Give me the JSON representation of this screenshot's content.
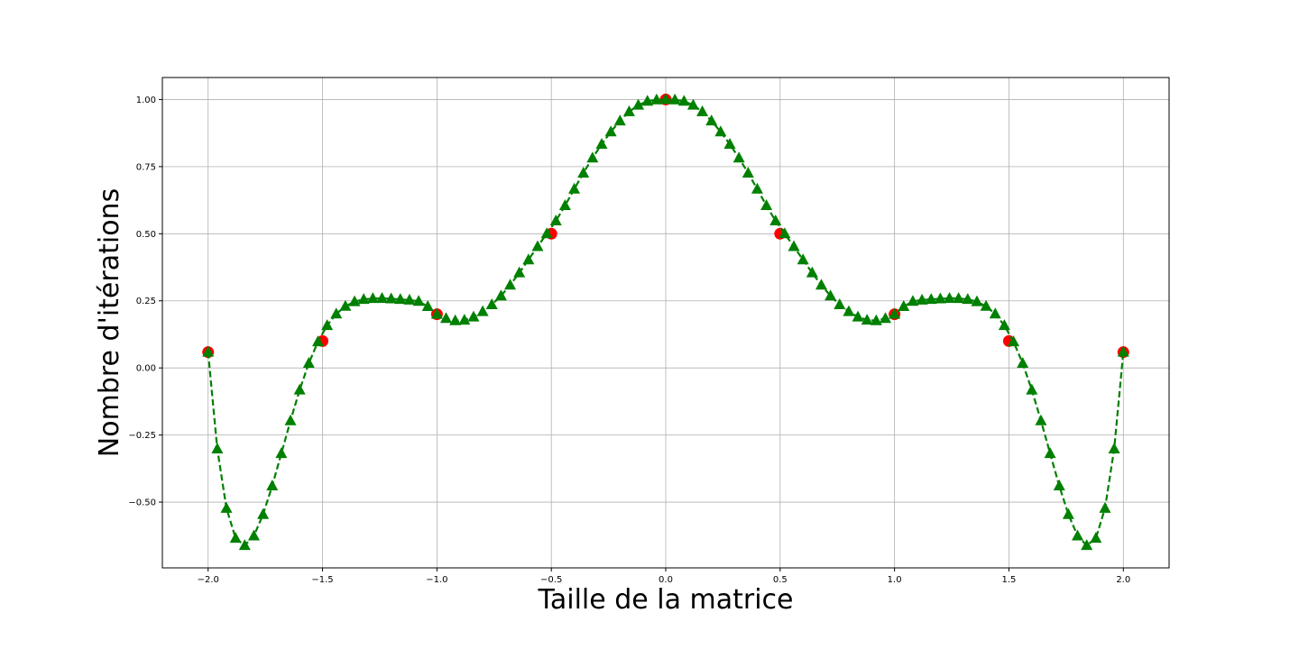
{
  "chart_data": {
    "type": "line",
    "title": "",
    "xlabel": "Taille de la matrice",
    "ylabel": "Nombre d'itérations",
    "xlim": [
      -2.2,
      2.2
    ],
    "ylim": [
      -0.745,
      1.082
    ],
    "xticks": [
      -2.0,
      -1.5,
      -1.0,
      -0.5,
      0.0,
      0.5,
      1.0,
      1.5,
      2.0
    ],
    "xtick_labels": [
      "−2.0",
      "−1.5",
      "−1.0",
      "−0.5",
      "0.0",
      "0.5",
      "1.0",
      "1.5",
      "2.0"
    ],
    "yticks": [
      -0.5,
      -0.25,
      0.0,
      0.25,
      0.5,
      0.75,
      1.0
    ],
    "ytick_labels": [
      "−0.50",
      "−0.25",
      "0.00",
      "0.25",
      "0.50",
      "0.75",
      "1.00"
    ],
    "grid": true,
    "series": [
      {
        "style": "dashed line with triangle markers",
        "color": "#008000",
        "x": [
          -2.0,
          -1.96,
          -1.92,
          -1.88,
          -1.84,
          -1.8,
          -1.76,
          -1.72,
          -1.68,
          -1.64,
          -1.6,
          -1.56,
          -1.52,
          -1.48,
          -1.44,
          -1.4,
          -1.36,
          -1.32,
          -1.28,
          -1.24,
          -1.2,
          -1.16,
          -1.12,
          -1.08,
          -1.04,
          -1.0,
          -0.96,
          -0.92,
          -0.88,
          -0.84,
          -0.8,
          -0.76,
          -0.72,
          -0.68,
          -0.64,
          -0.6,
          -0.56,
          -0.52,
          -0.48,
          -0.44,
          -0.4,
          -0.36,
          -0.32,
          -0.28,
          -0.24,
          -0.2,
          -0.16,
          -0.12,
          -0.08,
          -0.04,
          0.0,
          0.04,
          0.08,
          0.12,
          0.16,
          0.2,
          0.24,
          0.28,
          0.32,
          0.36,
          0.4,
          0.44,
          0.48,
          0.52,
          0.56,
          0.6,
          0.64,
          0.68,
          0.72,
          0.76,
          0.8,
          0.84,
          0.88,
          0.92,
          0.96,
          1.0,
          1.04,
          1.08,
          1.12,
          1.16,
          1.2,
          1.24,
          1.28,
          1.32,
          1.36,
          1.4,
          1.44,
          1.48,
          1.52,
          1.56,
          1.6,
          1.64,
          1.68,
          1.72,
          1.76,
          1.8,
          1.84,
          1.88,
          1.92,
          1.96,
          2.0
        ],
        "y": [
          0.0588,
          -0.3018,
          -0.5228,
          -0.6344,
          -0.6615,
          -0.6257,
          -0.5462,
          -0.4394,
          -0.3189,
          -0.1966,
          -0.0821,
          0.0174,
          0.0974,
          0.1581,
          0.2012,
          0.2297,
          0.2468,
          0.2555,
          0.2589,
          0.2591,
          0.2577,
          0.2555,
          0.2529,
          0.2482,
          0.2289,
          0.2,
          0.1844,
          0.1762,
          0.1783,
          0.1901,
          0.2101,
          0.2358,
          0.2685,
          0.3087,
          0.3543,
          0.4029,
          0.4522,
          0.5,
          0.5478,
          0.6049,
          0.6662,
          0.7262,
          0.7822,
          0.8335,
          0.8797,
          0.9204,
          0.9546,
          0.9791,
          0.9937,
          0.9989,
          1.0,
          0.9989,
          0.9937,
          0.9791,
          0.9546,
          0.9204,
          0.8797,
          0.8335,
          0.7822,
          0.7262,
          0.6662,
          0.6049,
          0.5478,
          0.5,
          0.4522,
          0.4029,
          0.3543,
          0.3087,
          0.2685,
          0.2358,
          0.2101,
          0.1901,
          0.1783,
          0.1762,
          0.1844,
          0.2,
          0.2289,
          0.2482,
          0.2529,
          0.2555,
          0.2577,
          0.2591,
          0.2589,
          0.2555,
          0.2468,
          0.2297,
          0.2012,
          0.1581,
          0.0974,
          0.0174,
          -0.0821,
          -0.1966,
          -0.3189,
          -0.4394,
          -0.5462,
          -0.6257,
          -0.6615,
          -0.6344,
          -0.5228,
          -0.3018,
          0.0588
        ]
      },
      {
        "style": "circle markers",
        "color": "#ff0000",
        "x": [
          -2.0,
          -1.5,
          -1.0,
          -0.5,
          0.0,
          0.5,
          1.0,
          1.5,
          2.0
        ],
        "y": [
          0.0588,
          0.1,
          0.2,
          0.5,
          1.0,
          0.5,
          0.2,
          0.1,
          0.0588
        ]
      }
    ]
  }
}
